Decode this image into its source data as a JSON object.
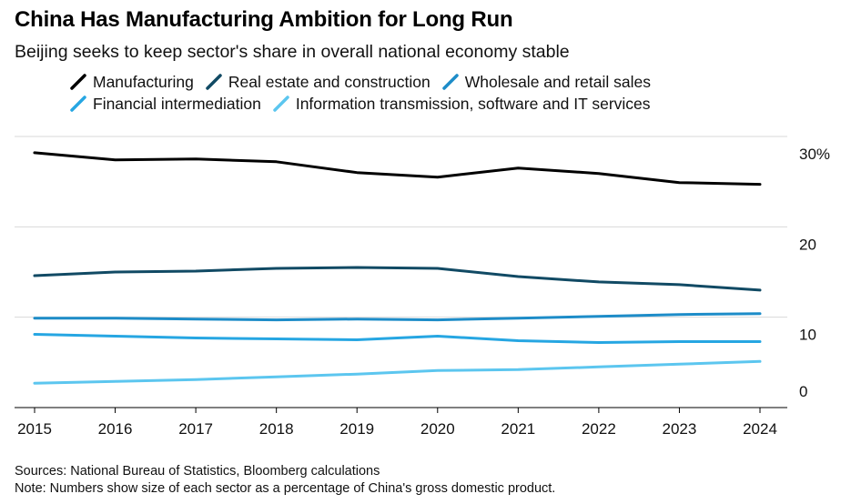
{
  "chart_data": {
    "type": "line",
    "title": "China Has Manufacturing Ambition for Long Run",
    "subtitle": "Beijing seeks to keep sector's share in overall national economy stable",
    "x": [
      "2015",
      "2016",
      "2017",
      "2018",
      "2019",
      "2020",
      "2021",
      "2022",
      "2023",
      "2024"
    ],
    "series": [
      {
        "name": "Manufacturing",
        "color": "#000000",
        "values": [
          28.2,
          27.4,
          27.5,
          27.2,
          26.0,
          25.5,
          26.5,
          25.9,
          24.9,
          24.7
        ]
      },
      {
        "name": "Real estate and construction",
        "color": "#114a64",
        "values": [
          14.6,
          15.0,
          15.1,
          15.4,
          15.5,
          15.4,
          14.5,
          13.9,
          13.6,
          13.0
        ]
      },
      {
        "name": "Wholesale and retail sales",
        "color": "#1d8cc8",
        "values": [
          9.9,
          9.9,
          9.8,
          9.7,
          9.8,
          9.7,
          9.9,
          10.1,
          10.3,
          10.4
        ]
      },
      {
        "name": "Financial intermediation",
        "color": "#26a6e2",
        "values": [
          8.1,
          7.9,
          7.7,
          7.6,
          7.5,
          7.9,
          7.4,
          7.2,
          7.3,
          7.3
        ]
      },
      {
        "name": "Information transmission, software and IT services",
        "color": "#5cc6ef",
        "values": [
          2.7,
          2.9,
          3.1,
          3.4,
          3.7,
          4.1,
          4.2,
          4.5,
          4.8,
          5.1
        ]
      }
    ],
    "y_ticks": [
      {
        "value": 0,
        "label": "0"
      },
      {
        "value": 10,
        "label": "10"
      },
      {
        "value": 20,
        "label": "20"
      },
      {
        "value": 30,
        "label": "30%"
      }
    ],
    "ylim": [
      0,
      30
    ],
    "xlabel": "",
    "ylabel": "",
    "grid": true,
    "legend_position": "top"
  },
  "footer": {
    "sources": "Sources: National Bureau of Statistics, Bloomberg calculations",
    "note": "Note: Numbers show size of each sector as a percentage of China's gross domestic product."
  }
}
